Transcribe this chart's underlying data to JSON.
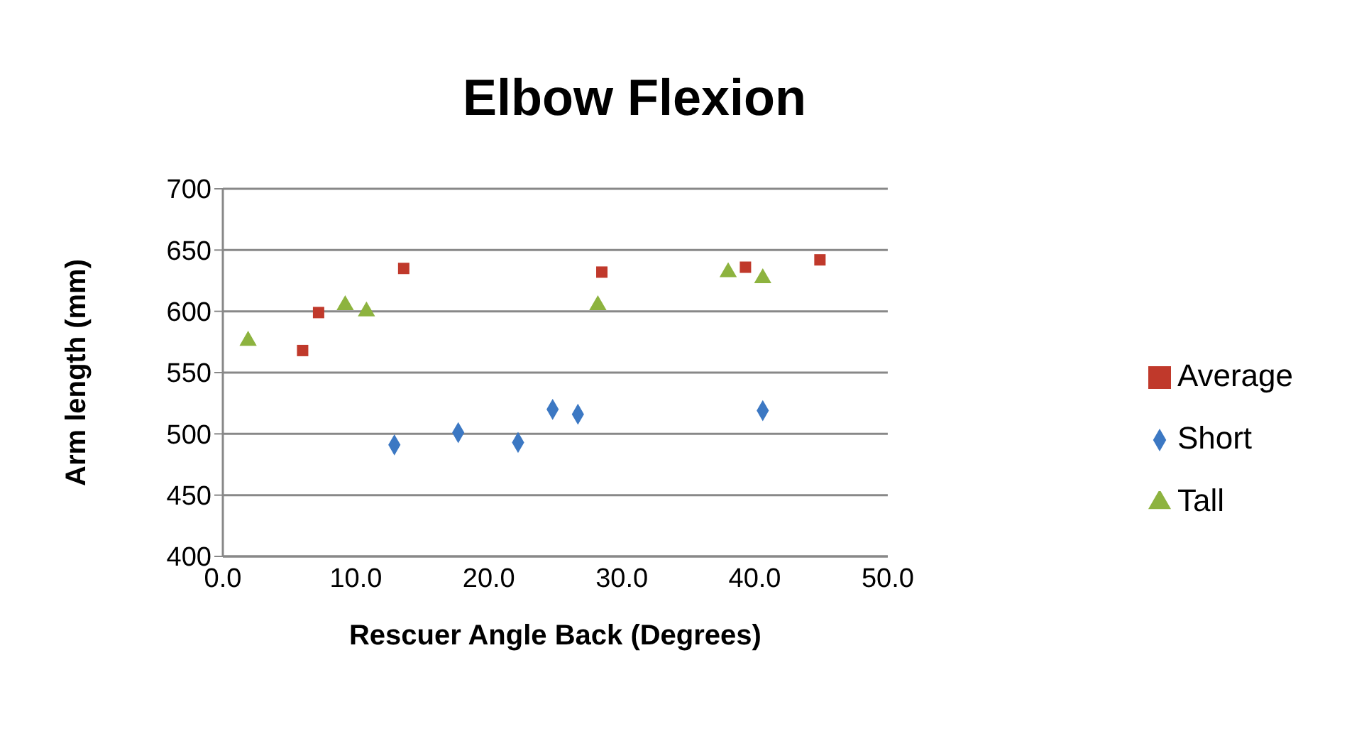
{
  "chart_data": {
    "type": "scatter",
    "title": "Elbow Flexion",
    "xlabel": "Rescuer Angle Back (Degrees)",
    "ylabel": "Arm length (mm)",
    "xlim": [
      0,
      50
    ],
    "xticks": [
      {
        "value": 0,
        "label": "0.0"
      },
      {
        "value": 10,
        "label": "10.0"
      },
      {
        "value": 20,
        "label": "20.0"
      },
      {
        "value": 30,
        "label": "30.0"
      },
      {
        "value": 40,
        "label": "40.0"
      },
      {
        "value": 50,
        "label": "50.0"
      }
    ],
    "ylim": [
      400,
      700
    ],
    "yticks": [
      400,
      450,
      500,
      550,
      600,
      650,
      700
    ],
    "grid": "y",
    "legend": "right",
    "series": [
      {
        "name": "Short",
        "color": "#3c78c3",
        "marker": "diamond",
        "x": [
          12.9,
          17.7,
          22.2,
          24.8,
          26.7,
          40.6
        ],
        "values": [
          491,
          501,
          493,
          520,
          516,
          519
        ]
      },
      {
        "name": "Average",
        "color": "#c0392b",
        "marker": "square",
        "x": [
          6.0,
          7.2,
          13.6,
          28.5,
          39.3,
          44.9
        ],
        "values": [
          568,
          599,
          635,
          632,
          636,
          642
        ]
      },
      {
        "name": "Tall",
        "color": "#8db33f",
        "marker": "triangle",
        "x": [
          1.9,
          9.2,
          10.8,
          28.2,
          38.0,
          40.6
        ],
        "values": [
          576,
          605,
          600,
          605,
          632,
          627
        ]
      }
    ]
  }
}
